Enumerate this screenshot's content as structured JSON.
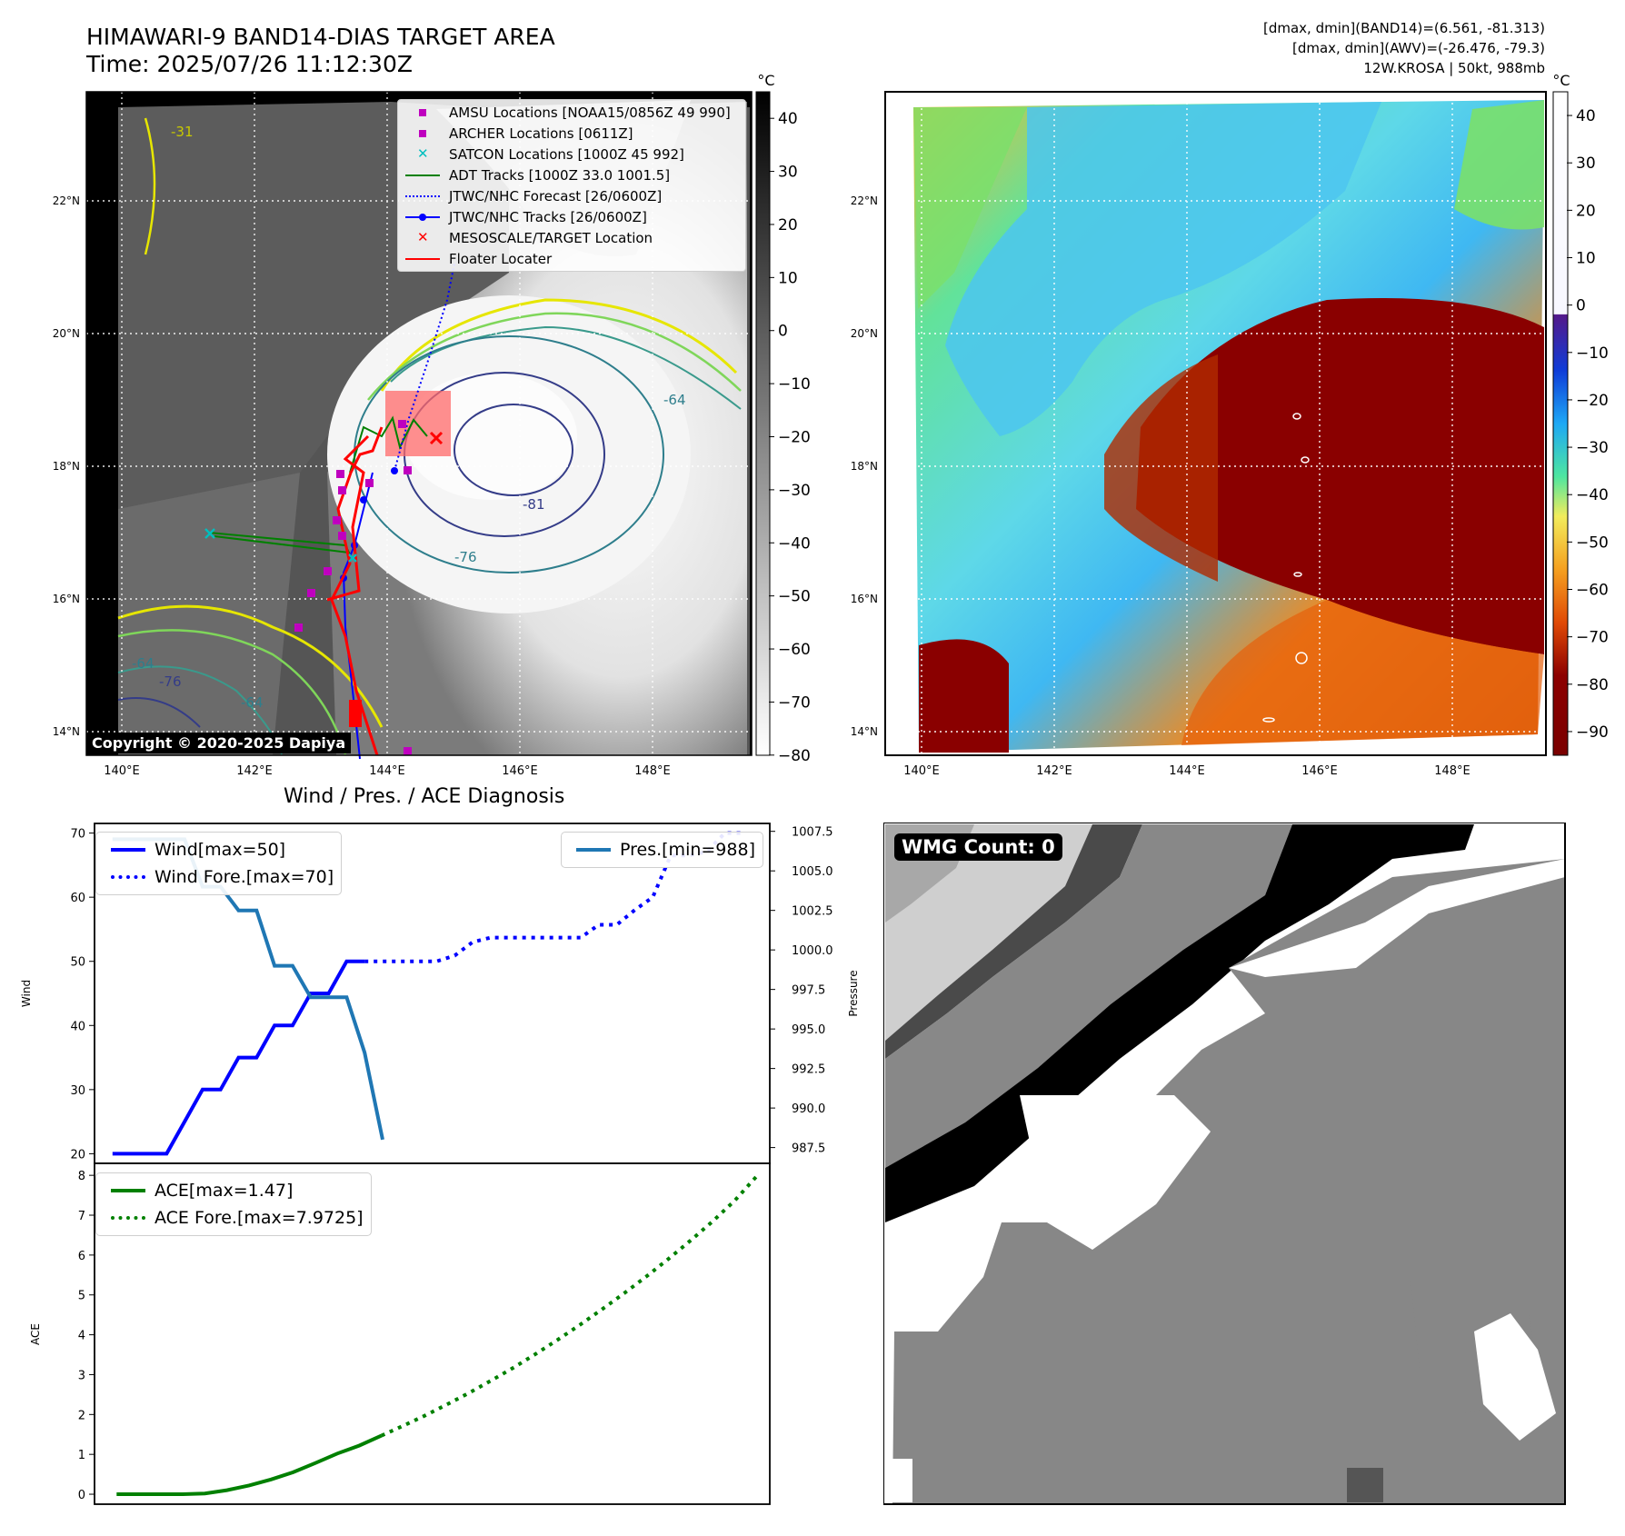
{
  "header": {
    "title_line1": "HIMAWARI-9 BAND14-DIAS TARGET AREA",
    "title_line2": "Time: 2025/07/26 11:12:30Z",
    "info_line1": "[dmax, dmin](BAND14)=(6.561, -81.313)",
    "info_line2": "[dmax, dmin](AWV)=(-26.476, -79.3)",
    "info_line3": "12W.KROSA | 50kt, 988mb"
  },
  "map_left": {
    "lat_labels": [
      "22°N",
      "20°N",
      "18°N",
      "16°N",
      "14°N"
    ],
    "lon_labels": [
      "140°E",
      "142°E",
      "144°E",
      "146°E",
      "148°E"
    ],
    "contour_labels": [
      "-31",
      "-64",
      "-76",
      "-81",
      "-64",
      "-76",
      "-64"
    ],
    "copyright": "Copyright © 2020-2025 Dapiya",
    "colorbar_unit": "°C",
    "colorbar_ticks": [
      "40",
      "30",
      "20",
      "10",
      "0",
      "−10",
      "−20",
      "−30",
      "−40",
      "−50",
      "−60",
      "−70",
      "−80"
    ],
    "legend": [
      {
        "label": "AMSU Locations [NOAA15/0856Z 49 990]",
        "kind": "square",
        "color": "#bf00bf"
      },
      {
        "label": "ARCHER Locations [0611Z]",
        "kind": "square",
        "color": "#bf00bf"
      },
      {
        "label": "SATCON Locations [1000Z 45 992]",
        "kind": "x",
        "color": "#00bfbf"
      },
      {
        "label": "ADT Tracks [1000Z 33.0 1001.5]",
        "kind": "line",
        "color": "#008000"
      },
      {
        "label": "JTWC/NHC Forecast [26/0600Z]",
        "kind": "dotted",
        "color": "#0000ff"
      },
      {
        "label": "JTWC/NHC Tracks [26/0600Z]",
        "kind": "line-dot",
        "color": "#0000ff"
      },
      {
        "label": "MESOSCALE/TARGET Location",
        "kind": "x",
        "color": "#ff0000"
      },
      {
        "label": "Floater Locater",
        "kind": "line",
        "color": "#ff0000"
      }
    ]
  },
  "map_right": {
    "lat_labels": [
      "22°N",
      "20°N",
      "18°N",
      "16°N",
      "14°N"
    ],
    "lon_labels": [
      "140°E",
      "142°E",
      "144°E",
      "146°E",
      "148°E"
    ],
    "colorbar_unit": "°C",
    "colorbar_ticks": [
      "40",
      "30",
      "20",
      "10",
      "0",
      "−10",
      "−20",
      "−30",
      "−40",
      "−50",
      "−60",
      "−70",
      "−80",
      "−90"
    ]
  },
  "diag_title": "Wind / Pres. / ACE Diagnosis",
  "wmg_label": "WMG Count: 0",
  "chart_data": [
    {
      "type": "line",
      "title": "",
      "ylabel": "Wind",
      "ylabel_right": "Pressure",
      "ylim": [
        18.5,
        71.5
      ],
      "ylim_right": [
        986.5,
        1008
      ],
      "yticks": [
        20,
        30,
        40,
        50,
        60,
        70
      ],
      "yticks_right": [
        "1007.5",
        "1005.0",
        "1002.5",
        "1000.0",
        "997.5",
        "995.0",
        "992.5",
        "990.0",
        "987.5"
      ],
      "legend_left": [
        "Wind[max=50]",
        "Wind Fore.[max=70]"
      ],
      "legend_right": [
        "Pres.[min=988]"
      ],
      "series": [
        {
          "name": "Wind[max=50]",
          "color": "#0000ff",
          "style": "solid",
          "axis": "left",
          "values": [
            [
              0,
              20
            ],
            [
              1,
              20
            ],
            [
              2,
              20
            ],
            [
              3,
              20
            ],
            [
              4,
              25
            ],
            [
              5,
              30
            ],
            [
              6,
              30
            ],
            [
              7,
              35
            ],
            [
              8,
              35
            ],
            [
              9,
              40
            ],
            [
              10,
              40
            ],
            [
              11,
              45
            ],
            [
              12,
              45
            ],
            [
              13,
              50
            ],
            [
              14,
              50
            ]
          ]
        },
        {
          "name": "Wind Fore.[max=70]",
          "color": "#0000ff",
          "style": "dotted",
          "axis": "left",
          "values": [
            [
              14,
              50
            ],
            [
              15,
              50
            ],
            [
              16,
              50
            ],
            [
              17,
              50
            ],
            [
              18,
              50
            ],
            [
              19,
              50.9
            ],
            [
              20,
              53
            ],
            [
              21,
              53.7
            ],
            [
              22,
              53.7
            ],
            [
              23,
              53.7
            ],
            [
              24,
              53.7
            ],
            [
              25,
              53.7
            ],
            [
              26,
              53.7
            ],
            [
              27,
              55.7
            ],
            [
              28,
              55.7
            ],
            [
              29,
              58
            ],
            [
              30,
              60
            ],
            [
              31,
              66.5
            ],
            [
              32,
              66.5
            ],
            [
              33,
              67.1
            ],
            [
              34,
              70
            ],
            [
              35,
              70
            ]
          ]
        },
        {
          "name": "Pres.[min=988]",
          "color": "#1f77b4",
          "style": "solid",
          "axis": "right",
          "values": [
            [
              0,
              1007.0
            ],
            [
              1,
              1007.0
            ],
            [
              2,
              1007.0
            ],
            [
              3,
              1007.0
            ],
            [
              4,
              1007.0
            ],
            [
              5,
              1004.0
            ],
            [
              6,
              1004.0
            ],
            [
              7,
              1002.5
            ],
            [
              8,
              1002.5
            ],
            [
              9,
              999.0
            ],
            [
              10,
              999.0
            ],
            [
              11,
              997.0
            ],
            [
              12,
              997.0
            ],
            [
              13,
              997.0
            ],
            [
              14,
              993.5
            ],
            [
              15,
              988.0
            ]
          ]
        }
      ],
      "x_range": [
        -1,
        36.5
      ]
    },
    {
      "type": "line",
      "title": "",
      "ylabel": "ACE",
      "ylim": [
        -0.25,
        8.3
      ],
      "yticks": [
        0,
        1,
        2,
        3,
        4,
        5,
        6,
        7,
        8
      ],
      "legend_left": [
        "ACE[max=1.47]",
        "ACE Fore.[max=7.9725]"
      ],
      "series": [
        {
          "name": "ACE[max=1.47]",
          "color": "#008000",
          "style": "solid",
          "values": [
            [
              0,
              0
            ],
            [
              1,
              0
            ],
            [
              2,
              0
            ],
            [
              3,
              0
            ],
            [
              4,
              0.02
            ],
            [
              5,
              0.1
            ],
            [
              6,
              0.22
            ],
            [
              7,
              0.37
            ],
            [
              8,
              0.55
            ],
            [
              9,
              0.78
            ],
            [
              10,
              1.02
            ],
            [
              11,
              1.22
            ],
            [
              12,
              1.47
            ]
          ]
        },
        {
          "name": "ACE Fore.[max=7.9725]",
          "color": "#008000",
          "style": "dotted",
          "values": [
            [
              12,
              1.47
            ],
            [
              13,
              1.72
            ],
            [
              14,
              1.98
            ],
            [
              15,
              2.26
            ],
            [
              16,
              2.55
            ],
            [
              17,
              2.86
            ],
            [
              18,
              3.18
            ],
            [
              19,
              3.52
            ],
            [
              20,
              3.88
            ],
            [
              21,
              4.25
            ],
            [
              22,
              4.64
            ],
            [
              23,
              5.04
            ],
            [
              24,
              5.46
            ],
            [
              25,
              5.9
            ],
            [
              26,
              6.36
            ],
            [
              27,
              6.84
            ],
            [
              28,
              7.36
            ],
            [
              29,
              7.9725
            ]
          ]
        }
      ],
      "x_range": [
        -1,
        29.6
      ]
    }
  ]
}
